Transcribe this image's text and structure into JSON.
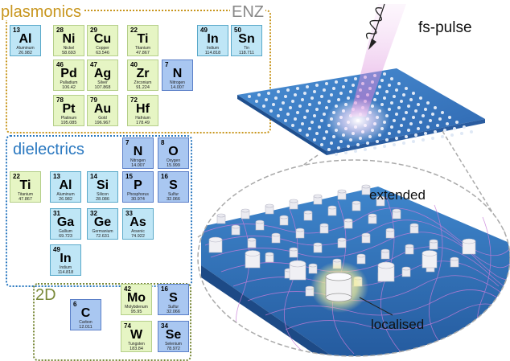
{
  "sections": {
    "plasmonics": "plasmonics",
    "enz": "ENZ",
    "dielectrics": "dielectrics",
    "twod": "2D"
  },
  "elements": {
    "al1": {
      "num": "13",
      "sym": "Al",
      "name": "Aluminum",
      "mass": "26.982"
    },
    "ni": {
      "num": "28",
      "sym": "Ni",
      "name": "Nickel",
      "mass": "58.693"
    },
    "cu": {
      "num": "29",
      "sym": "Cu",
      "name": "Copper",
      "mass": "63.546"
    },
    "ti1": {
      "num": "22",
      "sym": "Ti",
      "name": "Titanium",
      "mass": "47.867"
    },
    "in1": {
      "num": "49",
      "sym": "In",
      "name": "Indium",
      "mass": "114.818"
    },
    "sn": {
      "num": "50",
      "sym": "Sn",
      "name": "Tin",
      "mass": "118.711"
    },
    "pd": {
      "num": "46",
      "sym": "Pd",
      "name": "Palladium",
      "mass": "106.42"
    },
    "ag": {
      "num": "47",
      "sym": "Ag",
      "name": "Silver",
      "mass": "107.868"
    },
    "zr": {
      "num": "40",
      "sym": "Zr",
      "name": "Zirconium",
      "mass": "91.224"
    },
    "n1": {
      "num": "7",
      "sym": "N",
      "name": "Nitrogen",
      "mass": "14.007"
    },
    "pt": {
      "num": "78",
      "sym": "Pt",
      "name": "Platinum",
      "mass": "195.085"
    },
    "au": {
      "num": "79",
      "sym": "Au",
      "name": "Gold",
      "mass": "196.967"
    },
    "hf": {
      "num": "72",
      "sym": "Hf",
      "name": "Hafnium",
      "mass": "178.49"
    },
    "n2": {
      "num": "7",
      "sym": "N",
      "name": "Nitrogen",
      "mass": "14.007"
    },
    "o": {
      "num": "8",
      "sym": "O",
      "name": "Oxygen",
      "mass": "15.999"
    },
    "ti2": {
      "num": "22",
      "sym": "Ti",
      "name": "Titanium",
      "mass": "47.867"
    },
    "al2": {
      "num": "13",
      "sym": "Al",
      "name": "Aluminum",
      "mass": "26.982"
    },
    "si": {
      "num": "14",
      "sym": "Si",
      "name": "Silicon",
      "mass": "28.086"
    },
    "p": {
      "num": "15",
      "sym": "P",
      "name": "Phosphorus",
      "mass": "30.974"
    },
    "s1": {
      "num": "16",
      "sym": "S",
      "name": "Sulfur",
      "mass": "32.066"
    },
    "ga": {
      "num": "31",
      "sym": "Ga",
      "name": "Gallium",
      "mass": "69.723"
    },
    "ge": {
      "num": "32",
      "sym": "Ge",
      "name": "Germanium",
      "mass": "72.631"
    },
    "as": {
      "num": "33",
      "sym": "As",
      "name": "Arsenic",
      "mass": "74.922"
    },
    "in2": {
      "num": "49",
      "sym": "In",
      "name": "Indium",
      "mass": "114.818"
    },
    "mo": {
      "num": "42",
      "sym": "Mo",
      "name": "Molybdenum",
      "mass": "95.95"
    },
    "s2": {
      "num": "16",
      "sym": "S",
      "name": "Sulfur",
      "mass": "32.066"
    },
    "c": {
      "num": "6",
      "sym": "C",
      "name": "Carbon",
      "mass": "12.011"
    },
    "w": {
      "num": "74",
      "sym": "W",
      "name": "Tungsten",
      "mass": "183.84"
    },
    "se": {
      "num": "34",
      "sym": "Se",
      "name": "Selenium",
      "mass": "78.972"
    }
  },
  "illustration": {
    "pulse_label": "fs-pulse",
    "extended_label": "extended",
    "localised_label": "localised"
  },
  "colors": {
    "plasmonics": "#c8961e",
    "enz": "#888888",
    "dielectrics": "#2a78c0",
    "twod": "#7a8a3a",
    "metasurface": "#2f6fb5",
    "pillar": "#e6e6ee",
    "field": "#c77dd8"
  }
}
